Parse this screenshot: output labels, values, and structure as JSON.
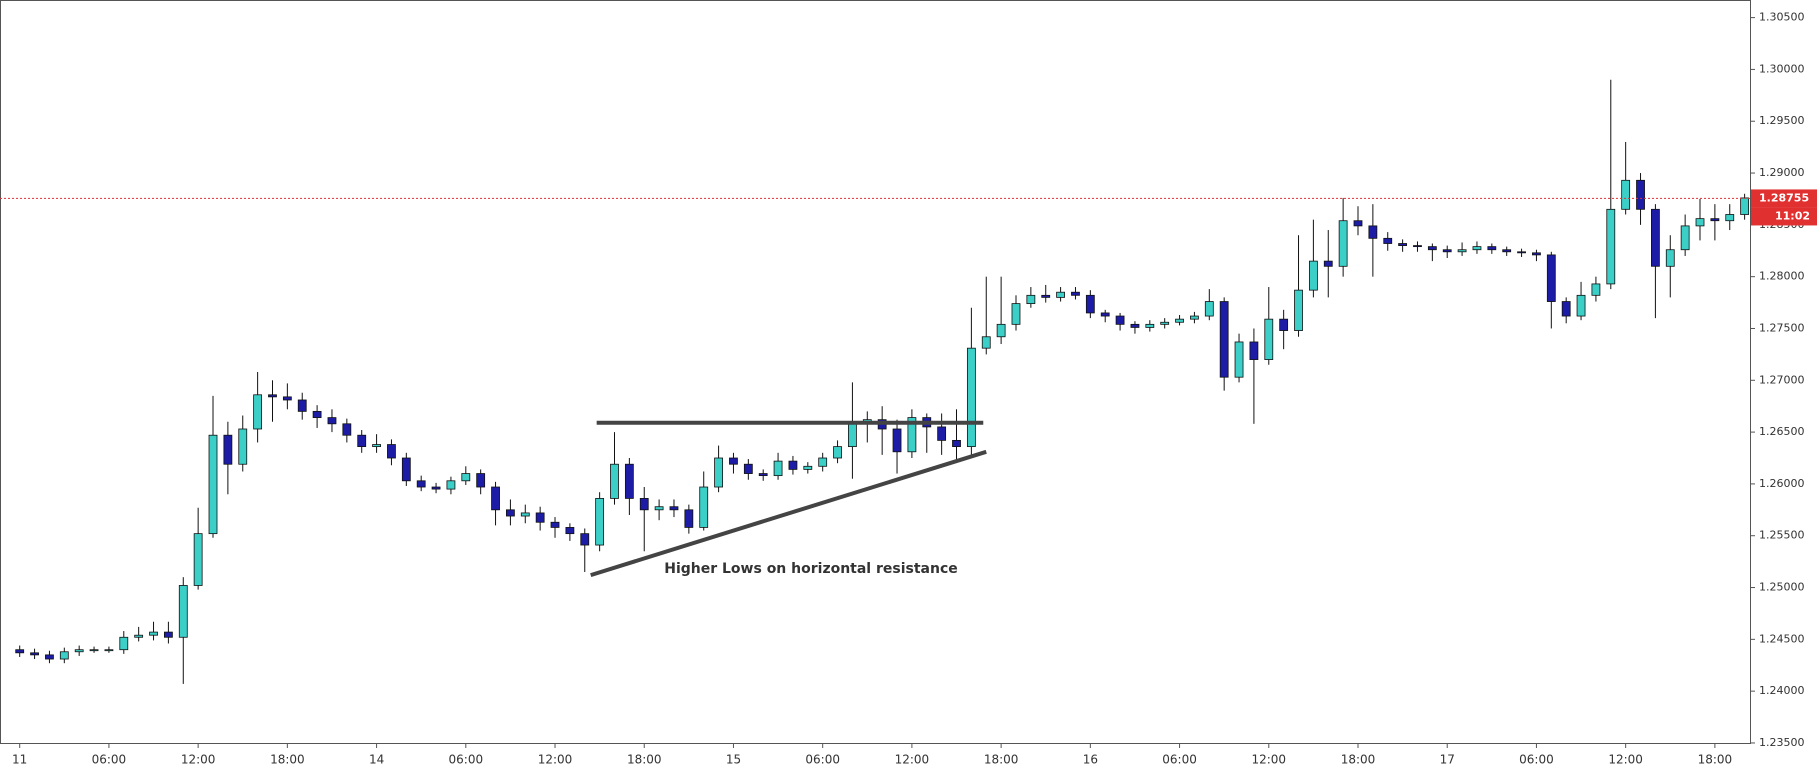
{
  "chart_data": {
    "type": "candlestick",
    "up_color": "#3ccfc8",
    "down_color": "#1c1ca6",
    "x": [
      "11",
      null,
      null,
      null,
      null,
      null,
      "06:00",
      null,
      null,
      null,
      null,
      null,
      "12:00",
      null,
      null,
      null,
      null,
      null,
      "18:00",
      null,
      null,
      null,
      null,
      null,
      "14",
      null,
      null,
      null,
      null,
      null,
      "06:00",
      null,
      null,
      null,
      null,
      null,
      "12:00",
      null,
      null,
      null,
      null,
      null,
      "18:00",
      null,
      null,
      null,
      null,
      null,
      "15",
      null,
      null,
      null,
      null,
      null,
      "06:00",
      null,
      null,
      null,
      null,
      null,
      "12:00",
      null,
      null,
      null,
      null,
      null,
      "18:00",
      null,
      null,
      null,
      null,
      null,
      "16",
      null,
      null,
      null,
      null,
      null,
      "06:00",
      null,
      null,
      null,
      null,
      null,
      "12:00",
      null,
      null,
      null,
      null,
      null,
      "18:00",
      null,
      null,
      null,
      null,
      null,
      "17",
      null,
      null,
      null,
      null,
      null,
      "06:00",
      null,
      null,
      null,
      null,
      null,
      "12:00",
      null,
      null,
      null,
      null,
      null,
      "18:00",
      null,
      null
    ],
    "open": [
      1.244,
      1.2437,
      1.2435,
      1.2431,
      1.2438,
      1.244,
      1.244,
      1.244,
      1.2452,
      1.2454,
      1.2457,
      1.2452,
      1.2502,
      1.2552,
      1.2647,
      1.2619,
      1.2653,
      1.2686,
      1.2684,
      1.2681,
      1.267,
      1.2664,
      1.2658,
      1.2647,
      1.2636,
      1.2638,
      1.2625,
      1.2603,
      1.2597,
      1.2595,
      1.2603,
      1.261,
      1.2597,
      1.2575,
      1.2569,
      1.2572,
      1.2563,
      1.2558,
      1.2552,
      1.2541,
      1.2586,
      1.2619,
      1.2586,
      1.2575,
      1.2578,
      1.2575,
      1.2558,
      1.2597,
      1.2625,
      1.2619,
      1.261,
      1.2608,
      1.2622,
      1.2614,
      1.2617,
      1.2625,
      1.2636,
      1.2658,
      1.2662,
      1.2653,
      1.2631,
      1.2664,
      1.2655,
      1.2642,
      1.2636,
      1.2731,
      1.2742,
      1.2754,
      1.2774,
      1.2782,
      1.278,
      1.2785,
      1.2782,
      1.2765,
      1.2762,
      1.2754,
      1.2751,
      1.2754,
      1.2756,
      1.2759,
      1.2762,
      1.2776,
      1.2703,
      1.2737,
      1.272,
      1.2759,
      1.2748,
      1.2787,
      1.2815,
      1.281,
      1.2854,
      1.2849,
      1.2837,
      1.2832,
      1.283,
      1.2829,
      1.2826,
      1.2824,
      1.2826,
      1.2829,
      1.2826,
      1.2824,
      1.2823,
      1.2821,
      1.2776,
      1.2762,
      1.2782,
      1.2793,
      1.2865,
      1.2893,
      1.2865,
      1.281,
      1.2826,
      1.2849,
      1.2856,
      1.2854,
      1.286
    ],
    "high": [
      1.2444,
      1.2441,
      1.2439,
      1.2442,
      1.2444,
      1.2443,
      1.2443,
      1.2458,
      1.2462,
      1.2467,
      1.2467,
      1.251,
      1.2577,
      1.2685,
      1.266,
      1.2666,
      1.2708,
      1.27,
      1.2697,
      1.2688,
      1.2676,
      1.2672,
      1.2663,
      1.2652,
      1.2648,
      1.2643,
      1.263,
      1.2608,
      1.2601,
      1.2607,
      1.2617,
      1.2614,
      1.2602,
      1.2585,
      1.258,
      1.2578,
      1.2568,
      1.2562,
      1.2557,
      1.2592,
      1.265,
      1.2625,
      1.2597,
      1.2585,
      1.2585,
      1.258,
      1.2612,
      1.2637,
      1.263,
      1.2624,
      1.2614,
      1.263,
      1.2627,
      1.2621,
      1.263,
      1.2642,
      1.2698,
      1.267,
      1.2675,
      1.2662,
      1.2672,
      1.2668,
      1.2668,
      1.2672,
      1.277,
      1.28,
      1.28,
      1.2782,
      1.279,
      1.2792,
      1.279,
      1.279,
      1.2787,
      1.2768,
      1.2765,
      1.2757,
      1.2758,
      1.276,
      1.2763,
      1.2766,
      1.2788,
      1.278,
      1.2745,
      1.275,
      1.279,
      1.2768,
      1.284,
      1.2855,
      1.2845,
      1.2876,
      1.2868,
      1.287,
      1.2843,
      1.2836,
      1.2834,
      1.2832,
      1.283,
      1.2833,
      1.2834,
      1.2832,
      1.2829,
      1.2827,
      1.2826,
      1.2824,
      1.278,
      1.2795,
      1.28,
      1.299,
      1.293,
      1.29,
      1.287,
      1.284,
      1.286,
      1.2875,
      1.287,
      1.287,
      1.288
    ],
    "low": [
      1.2433,
      1.2431,
      1.2427,
      1.2427,
      1.2434,
      1.2437,
      1.2437,
      1.2436,
      1.2448,
      1.2449,
      1.2446,
      1.2407,
      1.2498,
      1.2548,
      1.259,
      1.2612,
      1.264,
      1.266,
      1.2672,
      1.2662,
      1.2654,
      1.265,
      1.264,
      1.263,
      1.263,
      1.2618,
      1.2598,
      1.2593,
      1.2591,
      1.259,
      1.2599,
      1.259,
      1.256,
      1.256,
      1.2562,
      1.2555,
      1.2548,
      1.2545,
      1.2515,
      1.2535,
      1.258,
      1.257,
      1.2535,
      1.2565,
      1.2568,
      1.2552,
      1.2555,
      1.2592,
      1.261,
      1.2604,
      1.2603,
      1.2604,
      1.2609,
      1.261,
      1.2612,
      1.262,
      1.2605,
      1.264,
      1.2628,
      1.261,
      1.2625,
      1.263,
      1.2628,
      1.2622,
      1.2625,
      1.2725,
      1.2735,
      1.2748,
      1.277,
      1.2775,
      1.2776,
      1.2778,
      1.276,
      1.2756,
      1.2748,
      1.2745,
      1.2747,
      1.275,
      1.2753,
      1.2755,
      1.2758,
      1.269,
      1.2698,
      1.2658,
      1.2715,
      1.273,
      1.2742,
      1.278,
      1.278,
      1.28,
      1.284,
      1.28,
      1.2825,
      1.2824,
      1.2824,
      1.2815,
      1.2818,
      1.282,
      1.2822,
      1.2822,
      1.282,
      1.2819,
      1.2815,
      1.275,
      1.2755,
      1.2758,
      1.2776,
      1.2788,
      1.286,
      1.285,
      1.276,
      1.278,
      1.282,
      1.2835,
      1.2835,
      1.2845,
      1.2855
    ],
    "close": [
      1.2437,
      1.2435,
      1.2431,
      1.2438,
      1.244,
      1.244,
      1.244,
      1.2452,
      1.2454,
      1.2457,
      1.2452,
      1.2502,
      1.2552,
      1.2647,
      1.2619,
      1.2653,
      1.2686,
      1.2684,
      1.2681,
      1.267,
      1.2664,
      1.2658,
      1.2647,
      1.2636,
      1.2638,
      1.2625,
      1.2603,
      1.2597,
      1.2595,
      1.2603,
      1.261,
      1.2597,
      1.2575,
      1.2569,
      1.2572,
      1.2563,
      1.2558,
      1.2552,
      1.2541,
      1.2586,
      1.2619,
      1.2586,
      1.2575,
      1.2578,
      1.2575,
      1.2558,
      1.2597,
      1.2625,
      1.2619,
      1.261,
      1.2608,
      1.2622,
      1.2614,
      1.2617,
      1.2625,
      1.2636,
      1.2658,
      1.2662,
      1.2653,
      1.2631,
      1.2664,
      1.2655,
      1.2642,
      1.2636,
      1.2731,
      1.2742,
      1.2754,
      1.2774,
      1.2782,
      1.278,
      1.2785,
      1.2782,
      1.2765,
      1.2762,
      1.2754,
      1.2751,
      1.2754,
      1.2756,
      1.2759,
      1.2762,
      1.2776,
      1.2703,
      1.2737,
      1.272,
      1.2759,
      1.2748,
      1.2787,
      1.2815,
      1.281,
      1.2854,
      1.2849,
      1.2837,
      1.2832,
      1.283,
      1.2829,
      1.2826,
      1.2824,
      1.2826,
      1.2829,
      1.2826,
      1.2824,
      1.2823,
      1.2821,
      1.2776,
      1.2762,
      1.2782,
      1.2793,
      1.2865,
      1.2893,
      1.2865,
      1.281,
      1.2826,
      1.2849,
      1.2856,
      1.2854,
      1.286,
      1.2876
    ],
    "ylim": [
      1.2349,
      1.3067
    ],
    "yticks": [
      {
        "value": 1.235,
        "label": "1.23500"
      },
      {
        "value": 1.24,
        "label": "1.24000"
      },
      {
        "value": 1.245,
        "label": "1.24500"
      },
      {
        "value": 1.25,
        "label": "1.25000"
      },
      {
        "value": 1.255,
        "label": "1.25500"
      },
      {
        "value": 1.26,
        "label": "1.26000"
      },
      {
        "value": 1.265,
        "label": "1.26500"
      },
      {
        "value": 1.27,
        "label": "1.27000"
      },
      {
        "value": 1.275,
        "label": "1.27500"
      },
      {
        "value": 1.28,
        "label": "1.28000"
      },
      {
        "value": 1.285,
        "label": "1.28500"
      },
      {
        "value": 1.29,
        "label": "1.29000"
      },
      {
        "value": 1.295,
        "label": "1.29500"
      },
      {
        "value": 1.3,
        "label": "1.30000"
      },
      {
        "value": 1.305,
        "label": "1.30500"
      }
    ],
    "last_price": {
      "value": 1.28755,
      "label": "1.28755"
    },
    "countdown": "11:02",
    "price_line_color": "#e03030",
    "resistance": {
      "price": 1.2659,
      "from": 38.8,
      "to": 64.8
    },
    "trendline": {
      "from": [
        38.4,
        1.2512
      ],
      "to": [
        65,
        1.2631
      ]
    },
    "annotation": "Higher Lows on horizontal resistance"
  }
}
